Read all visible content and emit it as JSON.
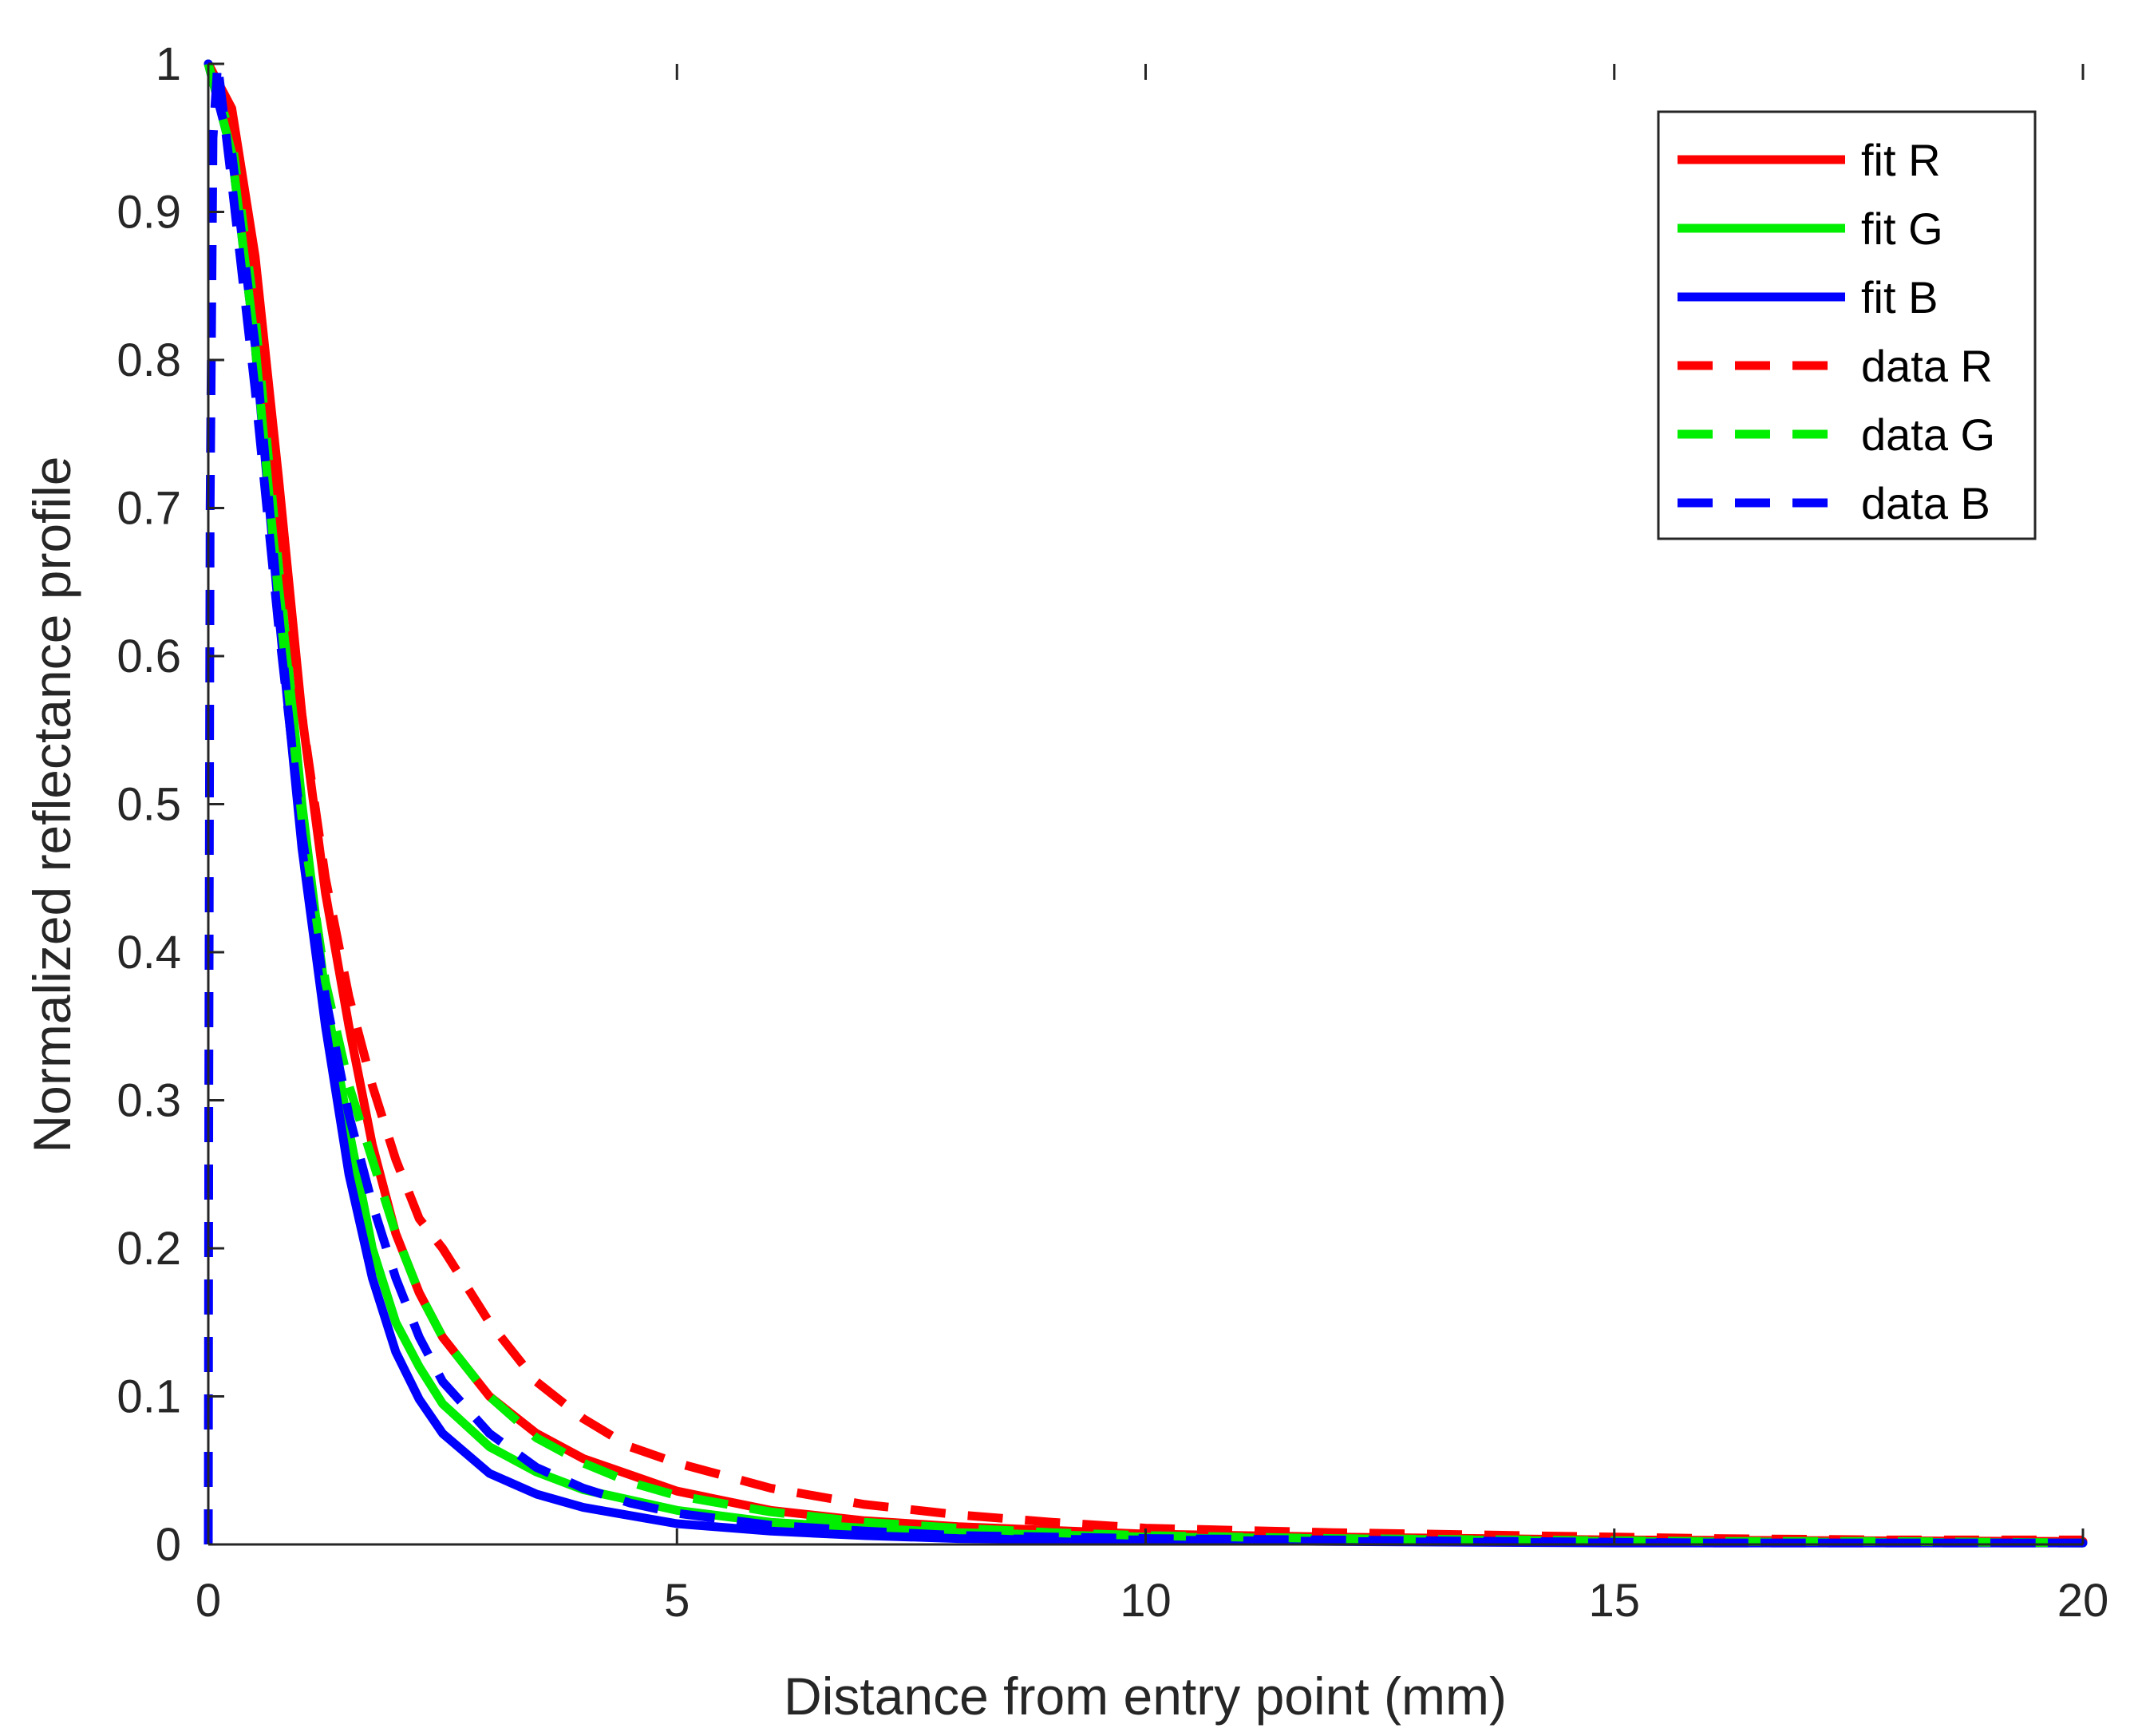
{
  "chart_data": {
    "type": "line",
    "title": "",
    "xlabel": "Distance from entry point (mm)",
    "ylabel": "Normalized reflectance profile",
    "xlim": [
      0,
      20
    ],
    "ylim": [
      0,
      1
    ],
    "xticks": [
      0,
      5,
      10,
      15,
      20
    ],
    "xtick_labels": [
      "0",
      "5",
      "10",
      "15",
      "20"
    ],
    "yticks": [
      0,
      0.1,
      0.2,
      0.3,
      0.4,
      0.5,
      0.6,
      0.7,
      0.8,
      0.9,
      1
    ],
    "ytick_labels": [
      "0",
      "0.1",
      "0.2",
      "0.3",
      "0.4",
      "0.5",
      "0.6",
      "0.7",
      "0.8",
      "0.9",
      "1"
    ],
    "grid": false,
    "legend_position": "top-right",
    "series": [
      {
        "name": "fit R",
        "color": "#ff0000",
        "style": "solid",
        "x": [
          0,
          0.25,
          0.5,
          0.75,
          1,
          1.25,
          1.5,
          1.75,
          2,
          2.25,
          2.5,
          3,
          3.5,
          4,
          5,
          6,
          7,
          8,
          10,
          12,
          15,
          20
        ],
        "y": [
          1,
          0.97,
          0.87,
          0.72,
          0.56,
          0.44,
          0.35,
          0.27,
          0.21,
          0.17,
          0.14,
          0.1,
          0.075,
          0.058,
          0.036,
          0.023,
          0.016,
          0.012,
          0.007,
          0.005,
          0.003,
          0.002
        ]
      },
      {
        "name": "fit G",
        "color": "#00ee00",
        "style": "solid",
        "x": [
          0,
          0.25,
          0.5,
          0.75,
          1,
          1.25,
          1.5,
          1.75,
          2,
          2.25,
          2.5,
          3,
          3.5,
          4,
          5,
          6,
          7,
          8,
          10,
          12,
          15,
          20
        ],
        "y": [
          1,
          0.95,
          0.83,
          0.66,
          0.5,
          0.37,
          0.28,
          0.2,
          0.15,
          0.12,
          0.095,
          0.066,
          0.049,
          0.037,
          0.023,
          0.015,
          0.011,
          0.008,
          0.005,
          0.004,
          0.002,
          0.001
        ]
      },
      {
        "name": "fit B",
        "color": "#0000ff",
        "style": "solid",
        "x": [
          0,
          0.25,
          0.5,
          0.75,
          1,
          1.25,
          1.5,
          1.75,
          2,
          2.25,
          2.5,
          3,
          3.5,
          4,
          5,
          6,
          7,
          8,
          10,
          12,
          15,
          20
        ],
        "y": [
          1,
          0.94,
          0.81,
          0.63,
          0.47,
          0.35,
          0.25,
          0.18,
          0.13,
          0.098,
          0.075,
          0.048,
          0.034,
          0.025,
          0.014,
          0.009,
          0.006,
          0.004,
          0.003,
          0.002,
          0.001,
          0.001
        ]
      },
      {
        "name": "data R",
        "color": "#ff0000",
        "style": "dashed",
        "x": [
          0,
          0.25,
          0.5,
          0.75,
          1,
          1.25,
          1.5,
          1.75,
          2,
          2.25,
          2.5,
          3,
          3.5,
          4,
          4.5,
          5,
          6,
          7,
          8,
          9,
          10,
          12,
          14,
          16,
          18,
          20
        ],
        "y": [
          1,
          0.95,
          0.84,
          0.7,
          0.56,
          0.45,
          0.37,
          0.31,
          0.26,
          0.22,
          0.2,
          0.15,
          0.11,
          0.085,
          0.066,
          0.055,
          0.038,
          0.027,
          0.02,
          0.015,
          0.011,
          0.008,
          0.006,
          0.004,
          0.003,
          0.003
        ]
      },
      {
        "name": "data G",
        "color": "#00ee00",
        "style": "dashed",
        "x": [
          0,
          0.25,
          0.5,
          0.75,
          1,
          1.25,
          1.5,
          1.75,
          2,
          2.25,
          2.5,
          3,
          3.5,
          4,
          4.5,
          5,
          6,
          7,
          8,
          9,
          10,
          12,
          14,
          16,
          18,
          20
        ],
        "y": [
          1,
          0.94,
          0.81,
          0.64,
          0.49,
          0.38,
          0.31,
          0.26,
          0.21,
          0.17,
          0.14,
          0.1,
          0.072,
          0.055,
          0.042,
          0.033,
          0.022,
          0.015,
          0.011,
          0.008,
          0.006,
          0.004,
          0.003,
          0.002,
          0.002,
          0.001
        ]
      },
      {
        "name": "data B",
        "color": "#0000ff",
        "style": "dashed",
        "x": [
          0,
          0.005,
          0.02,
          0.05,
          0.1,
          0.25,
          0.5,
          0.75,
          1,
          1.25,
          1.5,
          1.75,
          2,
          2.25,
          2.5,
          3,
          3.5,
          4,
          4.5,
          5,
          6,
          7,
          8,
          9,
          10,
          12,
          14,
          16,
          18,
          20
        ],
        "y": [
          0,
          0.3,
          0.7,
          0.95,
          1,
          0.92,
          0.78,
          0.62,
          0.48,
          0.37,
          0.29,
          0.23,
          0.18,
          0.14,
          0.11,
          0.075,
          0.052,
          0.038,
          0.028,
          0.021,
          0.013,
          0.009,
          0.006,
          0.005,
          0.004,
          0.003,
          0.002,
          0.001,
          0.001,
          0.001
        ]
      }
    ]
  }
}
